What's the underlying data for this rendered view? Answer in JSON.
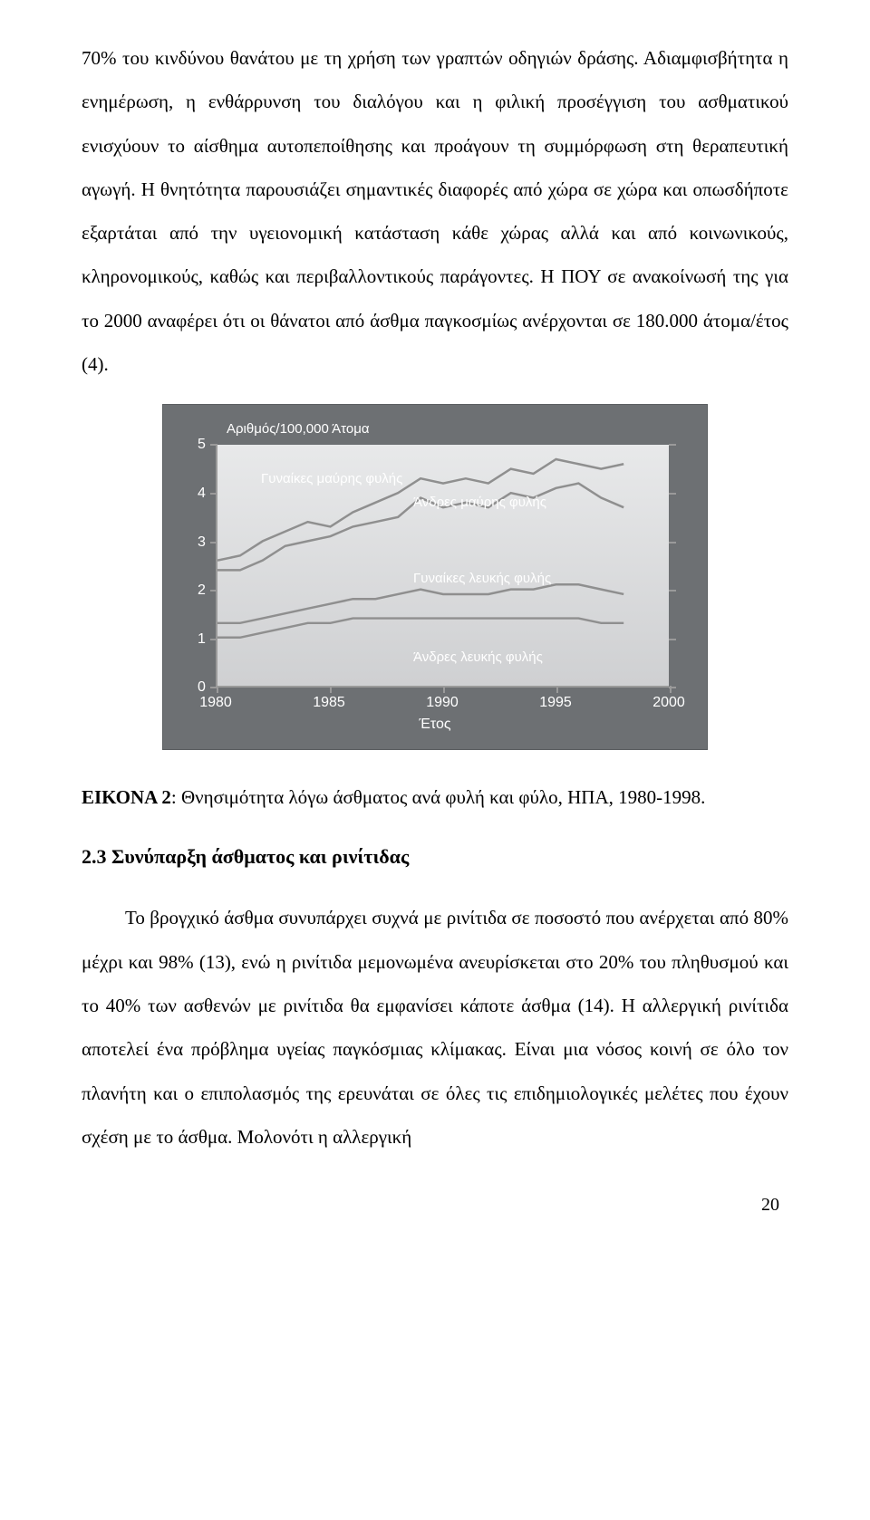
{
  "paragraph1": "70% του κινδύνου θανάτου με τη χρήση των γραπτών οδηγιών δράσης. Αδιαμφισβήτητα η ενημέρωση, η ενθάρρυνση του διαλόγου και η φιλική προσέγγιση του ασθματικού ενισχύουν το αίσθημα αυτοπεποίθησης και προάγουν τη συμμόρφωση στη θεραπευτική αγωγή. Η θνητότητα παρουσιάζει σημαντικές διαφορές από χώρα σε χώρα και οπωσδήποτε εξαρτάται από την υγειονομική κατάσταση κάθε χώρας αλλά και από κοινωνικούς, κληρονομικούς, καθώς και περιβαλλοντικούς παράγοντες. Η ΠΟΥ σε ανακοίνωσή της για το 2000 αναφέρει ότι οι θάνατοι από άσθμα παγκοσμίως ανέρχονται σε 180.000 άτομα/έτος (4).",
  "chart": {
    "ylabel": "Αριθμός/100,000 Άτομα",
    "xlabel": "Έτος",
    "yticks": [
      0,
      1,
      2,
      3,
      4,
      5
    ],
    "xticks": [
      1980,
      1985,
      1990,
      1995,
      2000
    ],
    "ylim": [
      0,
      5
    ],
    "xlim": [
      1980,
      2000
    ],
    "background_gradient": [
      "#e8e9ea",
      "#cfd0d2"
    ],
    "axis_color": "#9a9a9a",
    "chart_bg": "#6d7073",
    "text_color": "#ffffff",
    "series": [
      {
        "name": "Γυναίκες μαύρης φυλής",
        "label_pos": {
          "left_pct": 18,
          "top_pct": 19
        },
        "color": "#8f8f8f",
        "stroke_width": 2.5,
        "points": [
          [
            1980,
            2.6
          ],
          [
            1981,
            2.7
          ],
          [
            1982,
            3.0
          ],
          [
            1983,
            3.2
          ],
          [
            1984,
            3.4
          ],
          [
            1985,
            3.3
          ],
          [
            1986,
            3.6
          ],
          [
            1987,
            3.8
          ],
          [
            1988,
            4.0
          ],
          [
            1989,
            4.3
          ],
          [
            1990,
            4.2
          ],
          [
            1991,
            4.3
          ],
          [
            1992,
            4.2
          ],
          [
            1993,
            4.5
          ],
          [
            1994,
            4.4
          ],
          [
            1995,
            4.7
          ],
          [
            1996,
            4.6
          ],
          [
            1997,
            4.5
          ],
          [
            1998,
            4.6
          ]
        ]
      },
      {
        "name": "Άνδρες μαύρης φυλής",
        "label_pos": {
          "left_pct": 46,
          "top_pct": 26
        },
        "color": "#8f8f8f",
        "stroke_width": 2.5,
        "points": [
          [
            1980,
            2.4
          ],
          [
            1981,
            2.4
          ],
          [
            1982,
            2.6
          ],
          [
            1983,
            2.9
          ],
          [
            1984,
            3.0
          ],
          [
            1985,
            3.1
          ],
          [
            1986,
            3.3
          ],
          [
            1987,
            3.4
          ],
          [
            1988,
            3.5
          ],
          [
            1989,
            3.9
          ],
          [
            1990,
            3.7
          ],
          [
            1991,
            3.8
          ],
          [
            1992,
            3.7
          ],
          [
            1993,
            4.0
          ],
          [
            1994,
            3.9
          ],
          [
            1995,
            4.1
          ],
          [
            1996,
            4.2
          ],
          [
            1997,
            3.9
          ],
          [
            1998,
            3.7
          ]
        ]
      },
      {
        "name": "Γυναίκες λευκής φυλής",
        "label_pos": {
          "left_pct": 46,
          "top_pct": 48
        },
        "color": "#8f8f8f",
        "stroke_width": 2.5,
        "points": [
          [
            1980,
            1.3
          ],
          [
            1981,
            1.3
          ],
          [
            1982,
            1.4
          ],
          [
            1983,
            1.5
          ],
          [
            1984,
            1.6
          ],
          [
            1985,
            1.7
          ],
          [
            1986,
            1.8
          ],
          [
            1987,
            1.8
          ],
          [
            1988,
            1.9
          ],
          [
            1989,
            2.0
          ],
          [
            1990,
            1.9
          ],
          [
            1991,
            1.9
          ],
          [
            1992,
            1.9
          ],
          [
            1993,
            2.0
          ],
          [
            1994,
            2.0
          ],
          [
            1995,
            2.1
          ],
          [
            1996,
            2.1
          ],
          [
            1997,
            2.0
          ],
          [
            1998,
            1.9
          ]
        ]
      },
      {
        "name": "Άνδρες λευκής φυλής",
        "label_pos": {
          "left_pct": 46,
          "top_pct": 71
        },
        "color": "#8f8f8f",
        "stroke_width": 2.5,
        "points": [
          [
            1980,
            1.0
          ],
          [
            1981,
            1.0
          ],
          [
            1982,
            1.1
          ],
          [
            1983,
            1.2
          ],
          [
            1984,
            1.3
          ],
          [
            1985,
            1.3
          ],
          [
            1986,
            1.4
          ],
          [
            1987,
            1.4
          ],
          [
            1988,
            1.4
          ],
          [
            1989,
            1.4
          ],
          [
            1990,
            1.4
          ],
          [
            1991,
            1.4
          ],
          [
            1992,
            1.4
          ],
          [
            1993,
            1.4
          ],
          [
            1994,
            1.4
          ],
          [
            1995,
            1.4
          ],
          [
            1996,
            1.4
          ],
          [
            1997,
            1.3
          ],
          [
            1998,
            1.3
          ]
        ]
      }
    ]
  },
  "caption_prefix": "ΕΙΚΟΝΑ 2",
  "caption_text": ":  Θνησιμότητα λόγω άσθματος ανά φυλή και φύλο, ΗΠΑ, 1980-1998.",
  "section_heading": "2.3 Συνύπαρξη άσθματος και ρινίτιδας",
  "paragraph2": "Το βρογχικό άσθμα συνυπάρχει συχνά με ρινίτιδα σε ποσοστό που ανέρχεται από 80%  μέχρι και 98% (13), ενώ η ρινίτιδα μεμονωμένα ανευρίσκεται στο 20% του πληθυσμού και το 40% των ασθενών με ρινίτιδα θα εμφανίσει κάποτε άσθμα (14). Η αλλεργική ρινίτιδα αποτελεί ένα πρόβλημα υγείας παγκόσμιας κλίμακας. Είναι μια νόσος κοινή σε όλο τον πλανήτη και ο επιπολασμός της ερευνάται σε όλες τις επιδημιολογικές μελέτες που έχουν σχέση με το άσθμα. Μολονότι η αλλεργική",
  "page_number": "20"
}
